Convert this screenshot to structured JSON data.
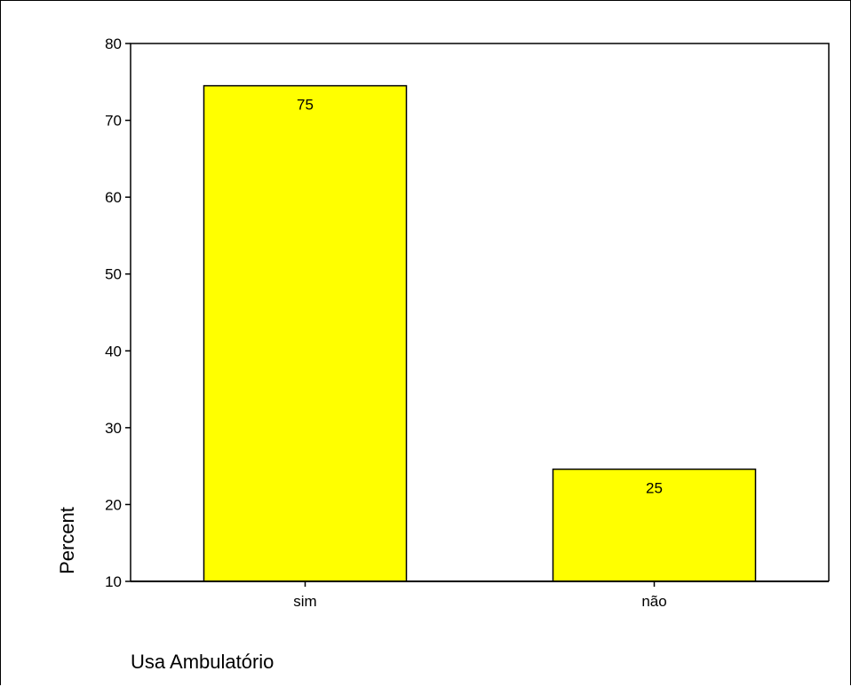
{
  "chart_data": {
    "type": "bar",
    "categories": [
      "sim",
      "não"
    ],
    "values": [
      74.5,
      24.6
    ],
    "data_labels": [
      "75",
      "25"
    ],
    "xlabel": "Usa Ambulatório",
    "ylabel": "Percent",
    "ylim": [
      10,
      80
    ],
    "yticks": [
      "10",
      "20",
      "30",
      "40",
      "50",
      "60",
      "70",
      "80"
    ],
    "bar_color": "#ffff00",
    "grid": false
  }
}
